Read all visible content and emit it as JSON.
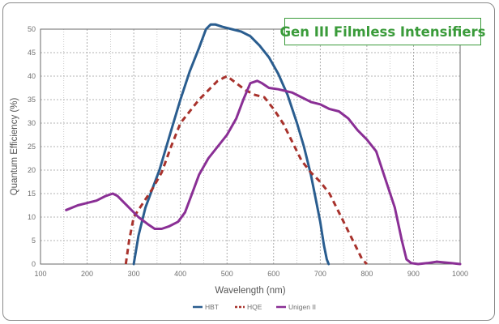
{
  "chart_data": {
    "type": "line",
    "title": "Gen III Filmless Intensifiers",
    "xlabel": "Wavelength (nm)",
    "ylabel": "Quantum Efficiency (%)",
    "xlim": [
      100,
      1000
    ],
    "ylim": [
      0,
      50
    ],
    "xticks": [
      100,
      200,
      300,
      400,
      500,
      600,
      700,
      800,
      900,
      1000
    ],
    "yticks": [
      0,
      5,
      10,
      15,
      20,
      25,
      30,
      35,
      40,
      45,
      50
    ],
    "grid": true,
    "legend_position": "bottom-center",
    "series": [
      {
        "name": "HBT",
        "color": "#2a5d8f",
        "style": "solid",
        "x": [
          300,
          310,
          325,
          340,
          355,
          370,
          385,
          400,
          420,
          440,
          455,
          465,
          475,
          490,
          510,
          530,
          550,
          570,
          590,
          610,
          630,
          650,
          665,
          680,
          690,
          700,
          708,
          714,
          718
        ],
        "y": [
          0,
          6,
          12,
          16,
          20,
          25,
          30,
          35,
          41,
          46,
          50,
          51,
          51,
          50.5,
          50,
          49.5,
          48.5,
          46.5,
          44,
          40.5,
          36,
          30,
          25,
          19,
          14,
          9,
          4,
          1,
          0
        ]
      },
      {
        "name": "HQE",
        "color": "#a8322c",
        "style": "dashed",
        "x": [
          283,
          290,
          300,
          320,
          340,
          360,
          380,
          400,
          420,
          440,
          460,
          480,
          500,
          520,
          540,
          560,
          580,
          600,
          620,
          640,
          660,
          680,
          700,
          720,
          740,
          760,
          780,
          790,
          800
        ],
        "y": [
          0,
          5,
          10,
          13,
          16,
          19.5,
          25,
          30,
          32.5,
          35,
          37,
          39,
          40,
          38.5,
          37,
          36,
          35.5,
          33,
          30,
          26,
          22,
          19.5,
          17.5,
          15,
          11,
          7,
          3,
          1,
          0
        ]
      },
      {
        "name": "Unigen II",
        "color": "#8a2f95",
        "style": "solid",
        "x": [
          155,
          180,
          200,
          220,
          240,
          255,
          265,
          275,
          290,
          310,
          330,
          345,
          360,
          375,
          395,
          410,
          425,
          440,
          460,
          480,
          500,
          520,
          535,
          550,
          565,
          575,
          590,
          610,
          640,
          660,
          680,
          700,
          720,
          740,
          760,
          780,
          800,
          820,
          840,
          860,
          875,
          885,
          895,
          910,
          930,
          950,
          980,
          1000
        ],
        "y": [
          11.5,
          12.5,
          13,
          13.5,
          14.5,
          15,
          14.5,
          13.5,
          12,
          10,
          8.5,
          7.5,
          7.5,
          8,
          9,
          11,
          15,
          19,
          22.5,
          25,
          27.5,
          31,
          35,
          38.5,
          39,
          38.5,
          37.5,
          37.2,
          36.5,
          35.5,
          34.5,
          34,
          33,
          32.5,
          31,
          28.5,
          26.5,
          24,
          18,
          12,
          5,
          1,
          0.2,
          0,
          0.2,
          0.5,
          0.2,
          0
        ]
      }
    ]
  }
}
